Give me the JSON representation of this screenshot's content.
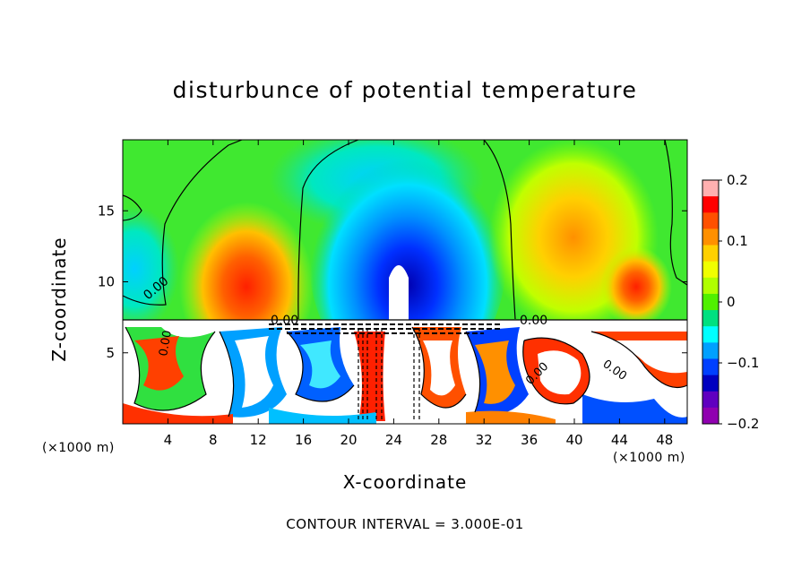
{
  "chart_data": {
    "type": "heatmap",
    "title": "disturbunce of potential temperature",
    "xlabel": "X-coordinate",
    "ylabel": "Z-coordinate",
    "x_unit": "(×1000 m)",
    "y_unit": "(×1000 m)",
    "xlim": [
      0,
      50
    ],
    "ylim": [
      0,
      20
    ],
    "x_ticks": [
      4,
      8,
      12,
      16,
      20,
      24,
      28,
      32,
      36,
      40,
      44,
      48
    ],
    "y_ticks": [
      5,
      10,
      15
    ],
    "colorbar": {
      "range": [
        -0.2,
        0.2
      ],
      "ticks": [
        0.2,
        0.1,
        0,
        -0.1,
        -0.2
      ],
      "tick_labels": [
        "0.2",
        "0.1",
        "0",
        "−0.1",
        "−0.2"
      ],
      "colors": [
        "#ffb0b0",
        "#ff0000",
        "#ff5000",
        "#ff9000",
        "#ffd000",
        "#f0ff00",
        "#b0ff00",
        "#50f000",
        "#00e080",
        "#00ffff",
        "#00a0ff",
        "#0040ff",
        "#0000c0",
        "#6000c0",
        "#9000b0"
      ]
    },
    "contour_labels": [
      "0.00"
    ],
    "contour_interval": "CONTOUR INTERVAL = 3.000E-01"
  }
}
